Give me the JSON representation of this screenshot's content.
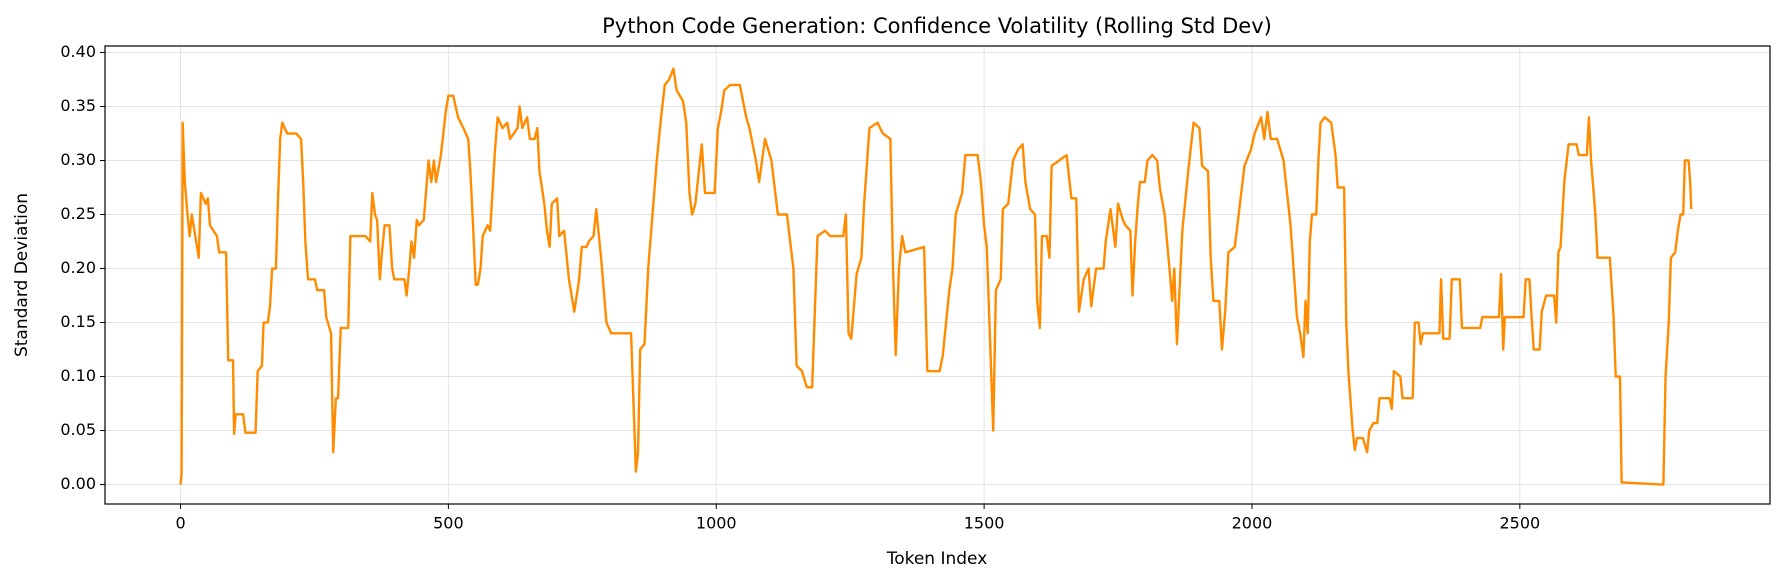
{
  "chart_data": {
    "type": "line",
    "title": "Python Code Generation: Confidence Volatility (Rolling Std Dev)",
    "x_label": "Token Index",
    "y_label": "Standard Deviation",
    "color": "#ff8c00",
    "grid": true,
    "xlim": [
      -141,
      2967
    ],
    "ylim": [
      -0.018,
      0.406
    ],
    "xticks": [
      0,
      500,
      1000,
      1500,
      2000,
      2500
    ],
    "yticks": [
      {
        "value": 0,
        "label": "0.00"
      },
      0.05,
      {
        "value": 0.1,
        "label": "0.10"
      },
      0.15,
      {
        "value": 0.2,
        "label": "0.20"
      },
      0.25,
      {
        "value": 0.3,
        "label": "0.30"
      },
      0.35,
      {
        "value": 0.4,
        "label": "0.40"
      }
    ],
    "x": [
      0,
      2,
      4,
      8,
      13,
      17,
      21,
      26,
      34,
      38,
      47,
      51,
      55,
      68,
      72,
      85,
      89,
      98,
      100,
      103,
      117,
      121,
      140,
      144,
      152,
      155,
      163,
      167,
      171,
      178,
      182,
      186,
      190,
      199,
      216,
      225,
      229,
      233,
      238,
      251,
      255,
      268,
      272,
      281,
      285,
      290,
      294,
      299,
      313,
      317,
      345,
      354,
      358,
      363,
      367,
      372,
      376,
      381,
      390,
      395,
      399,
      418,
      422,
      427,
      431,
      436,
      441,
      445,
      454,
      463,
      468,
      473,
      477,
      486,
      495,
      500,
      509,
      518,
      528,
      537,
      541,
      546,
      551,
      555,
      560,
      564,
      573,
      578,
      587,
      592,
      601,
      610,
      615,
      629,
      633,
      638,
      647,
      652,
      661,
      666,
      670,
      679,
      684,
      689,
      693,
      703,
      707,
      716,
      725,
      735,
      744,
      749,
      758,
      762,
      771,
      776,
      785,
      795,
      804,
      813,
      841,
      850,
      854,
      858,
      866,
      873,
      881,
      889,
      897,
      904,
      912,
      920,
      926,
      938,
      944,
      950,
      955,
      961,
      973,
      979,
      997,
      1003,
      1009,
      1015,
      1026,
      1044,
      1056,
      1062,
      1074,
      1080,
      1091,
      1103,
      1115,
      1132,
      1144,
      1150,
      1160,
      1169,
      1179,
      1189,
      1203,
      1213,
      1237,
      1242,
      1247,
      1252,
      1262,
      1271,
      1276,
      1286,
      1301,
      1311,
      1325,
      1330,
      1335,
      1341,
      1347,
      1353,
      1388,
      1394,
      1417,
      1423,
      1435,
      1441,
      1447,
      1459,
      1465,
      1488,
      1494,
      1500,
      1505,
      1517,
      1522,
      1531,
      1535,
      1545,
      1554,
      1563,
      1572,
      1577,
      1586,
      1595,
      1599,
      1604,
      1608,
      1617,
      1622,
      1626,
      1640,
      1654,
      1663,
      1672,
      1677,
      1686,
      1695,
      1700,
      1709,
      1723,
      1727,
      1736,
      1745,
      1750,
      1759,
      1764,
      1773,
      1777,
      1782,
      1787,
      1791,
      1800,
      1805,
      1814,
      1823,
      1828,
      1837,
      1846,
      1851,
      1855,
      1860,
      1870,
      1881,
      1891,
      1902,
      1907,
      1918,
      1923,
      1928,
      1939,
      1944,
      1950,
      1956,
      1968,
      1974,
      1986,
      1998,
      2005,
      2017,
      2023,
      2029,
      2035,
      2047,
      2059,
      2072,
      2084,
      2090,
      2096,
      2100,
      2104,
      2108,
      2112,
      2120,
      2124,
      2128,
      2136,
      2148,
      2156,
      2160,
      2172,
      2176,
      2180,
      2188,
      2192,
      2196,
      2207,
      2215,
      2219,
      2227,
      2234,
      2238,
      2257,
      2261,
      2265,
      2277,
      2281,
      2300,
      2304,
      2311,
      2315,
      2319,
      2350,
      2353,
      2357,
      2369,
      2373,
      2388,
      2392,
      2426,
      2430,
      2461,
      2465,
      2469,
      2472,
      2507,
      2511,
      2518,
      2522,
      2526,
      2537,
      2541,
      2549,
      2564,
      2568,
      2572,
      2576,
      2583,
      2591,
      2606,
      2610,
      2625,
      2629,
      2633,
      2641,
      2645,
      2668,
      2675,
      2679,
      2687,
      2690,
      2768,
      2772,
      2778,
      2782,
      2790,
      2795,
      2800,
      2805,
      2808,
      2815,
      2818,
      2820
    ],
    "values": [
      0,
      0.01,
      0.335,
      0.28,
      0.25,
      0.23,
      0.25,
      0.235,
      0.21,
      0.27,
      0.26,
      0.265,
      0.24,
      0.23,
      0.215,
      0.215,
      0.115,
      0.115,
      0.047,
      0.065,
      0.065,
      0.048,
      0.048,
      0.105,
      0.11,
      0.15,
      0.15,
      0.165,
      0.2,
      0.2,
      0.265,
      0.32,
      0.335,
      0.325,
      0.325,
      0.32,
      0.28,
      0.225,
      0.19,
      0.19,
      0.18,
      0.18,
      0.155,
      0.14,
      0.03,
      0.08,
      0.08,
      0.145,
      0.145,
      0.23,
      0.23,
      0.225,
      0.27,
      0.25,
      0.245,
      0.19,
      0.215,
      0.24,
      0.24,
      0.2,
      0.19,
      0.19,
      0.175,
      0.2,
      0.225,
      0.21,
      0.245,
      0.24,
      0.245,
      0.3,
      0.28,
      0.3,
      0.28,
      0.305,
      0.345,
      0.36,
      0.36,
      0.34,
      0.33,
      0.32,
      0.29,
      0.24,
      0.185,
      0.185,
      0.2,
      0.23,
      0.24,
      0.235,
      0.31,
      0.34,
      0.33,
      0.335,
      0.32,
      0.33,
      0.35,
      0.33,
      0.34,
      0.32,
      0.32,
      0.33,
      0.29,
      0.26,
      0.235,
      0.22,
      0.26,
      0.265,
      0.23,
      0.235,
      0.19,
      0.16,
      0.19,
      0.22,
      0.22,
      0.225,
      0.23,
      0.255,
      0.21,
      0.15,
      0.14,
      0.14,
      0.14,
      0.012,
      0.03,
      0.125,
      0.13,
      0.2,
      0.25,
      0.3,
      0.34,
      0.37,
      0.375,
      0.385,
      0.365,
      0.355,
      0.335,
      0.27,
      0.25,
      0.26,
      0.315,
      0.27,
      0.27,
      0.33,
      0.345,
      0.365,
      0.37,
      0.37,
      0.34,
      0.33,
      0.3,
      0.28,
      0.32,
      0.3,
      0.25,
      0.25,
      0.2,
      0.11,
      0.105,
      0.09,
      0.09,
      0.23,
      0.235,
      0.23,
      0.23,
      0.25,
      0.14,
      0.135,
      0.195,
      0.21,
      0.26,
      0.33,
      0.335,
      0.325,
      0.32,
      0.2,
      0.12,
      0.2,
      0.23,
      0.215,
      0.22,
      0.105,
      0.105,
      0.12,
      0.18,
      0.2,
      0.25,
      0.27,
      0.305,
      0.305,
      0.28,
      0.24,
      0.22,
      0.05,
      0.18,
      0.19,
      0.255,
      0.26,
      0.3,
      0.31,
      0.315,
      0.28,
      0.255,
      0.25,
      0.17,
      0.145,
      0.23,
      0.23,
      0.21,
      0.295,
      0.3,
      0.305,
      0.265,
      0.265,
      0.16,
      0.19,
      0.2,
      0.165,
      0.2,
      0.2,
      0.225,
      0.255,
      0.22,
      0.26,
      0.245,
      0.24,
      0.235,
      0.175,
      0.225,
      0.26,
      0.28,
      0.28,
      0.3,
      0.305,
      0.3,
      0.275,
      0.25,
      0.2,
      0.17,
      0.2,
      0.13,
      0.235,
      0.29,
      0.335,
      0.33,
      0.295,
      0.29,
      0.21,
      0.17,
      0.17,
      0.125,
      0.16,
      0.215,
      0.22,
      0.245,
      0.295,
      0.31,
      0.325,
      0.34,
      0.32,
      0.345,
      0.32,
      0.32,
      0.3,
      0.24,
      0.155,
      0.14,
      0.118,
      0.17,
      0.14,
      0.225,
      0.25,
      0.25,
      0.3,
      0.335,
      0.34,
      0.335,
      0.305,
      0.275,
      0.275,
      0.15,
      0.105,
      0.05,
      0.032,
      0.043,
      0.043,
      0.03,
      0.05,
      0.057,
      0.057,
      0.08,
      0.08,
      0.07,
      0.105,
      0.1,
      0.08,
      0.08,
      0.15,
      0.15,
      0.13,
      0.14,
      0.14,
      0.19,
      0.135,
      0.135,
      0.19,
      0.19,
      0.145,
      0.145,
      0.155,
      0.155,
      0.195,
      0.125,
      0.155,
      0.155,
      0.19,
      0.19,
      0.155,
      0.125,
      0.125,
      0.16,
      0.175,
      0.175,
      0.15,
      0.215,
      0.22,
      0.28,
      0.315,
      0.315,
      0.305,
      0.305,
      0.34,
      0.3,
      0.25,
      0.21,
      0.21,
      0.155,
      0.1,
      0.1,
      0.002,
      0,
      0.1,
      0.15,
      0.21,
      0.215,
      0.235,
      0.25,
      0.25,
      0.3,
      0.3,
      0.28,
      0.255
    ]
  }
}
